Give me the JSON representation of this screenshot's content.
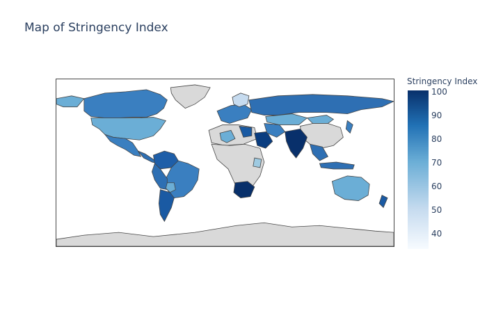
{
  "title": "Map of Stringency Index",
  "colorbar": {
    "title": "Stringency Index",
    "ticks": [
      "100",
      "90",
      "80",
      "70",
      "60",
      "50",
      "40"
    ],
    "range": [
      33,
      100
    ],
    "colors": [
      "#f7fbff",
      "#c6dbef",
      "#6baed6",
      "#2171b5",
      "#08306b"
    ]
  },
  "map": {
    "no_data_color": "#d9d9d9",
    "border_color": "#444444"
  }
}
